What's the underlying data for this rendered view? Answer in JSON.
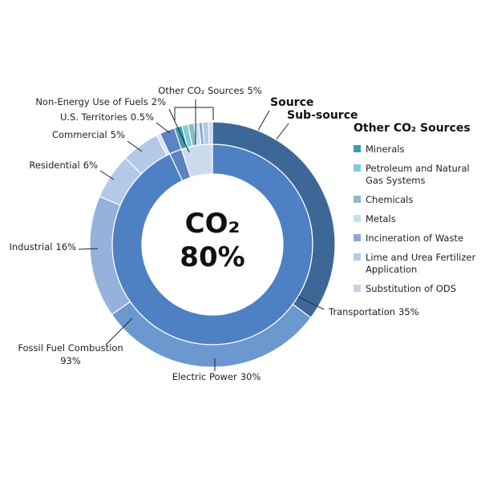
{
  "chart_data": {
    "type": "nested-donut",
    "center_title": "CO₂",
    "center_label": "80%",
    "legend_title": "Other CO₂ Sources",
    "rings": [
      {
        "name": "Source",
        "categories": [
          "Fossil Fuel Combustion",
          "Non-Energy Use of Fuels",
          "Other CO₂ Sources"
        ],
        "values": [
          93,
          2,
          5
        ],
        "value_labels": [
          "93%",
          "2%",
          "5%"
        ],
        "colors": [
          "#4e80c4",
          "#5d83c0",
          "#ccdaee"
        ]
      },
      {
        "name": "Sub-source",
        "categories": [
          "Transportation",
          "Electric Power",
          "Industrial",
          "Residential",
          "Commercial",
          "U.S. Territories",
          null,
          "Minerals",
          "Petroleum and Natural Gas Systems",
          "Chemicals",
          "Metals",
          "Incineration of Waste",
          "Lime and Urea Fertilizer Application",
          "Substitution of ODS"
        ],
        "values": [
          35,
          30,
          16,
          6,
          5,
          0.5,
          2,
          1,
          0.8,
          0.8,
          0.6,
          0.5,
          0.8,
          0.5
        ],
        "value_labels": [
          "35%",
          "30%",
          "16%",
          "6%",
          "5%",
          "0.5%",
          null,
          null,
          null,
          null,
          null,
          null,
          null,
          null
        ],
        "colors": [
          "#3d6797",
          "#6b98cf",
          "#94b2dc",
          "#b4c9e7",
          "#b4c9e7",
          "#d5e0f0",
          "#5d83c0",
          "#3d9cab",
          "#7ccddd",
          "#8cbcc8",
          "#c0e2ec",
          "#8ca7d8",
          "#b7cbe8",
          "#c6d4ea"
        ]
      }
    ]
  }
}
